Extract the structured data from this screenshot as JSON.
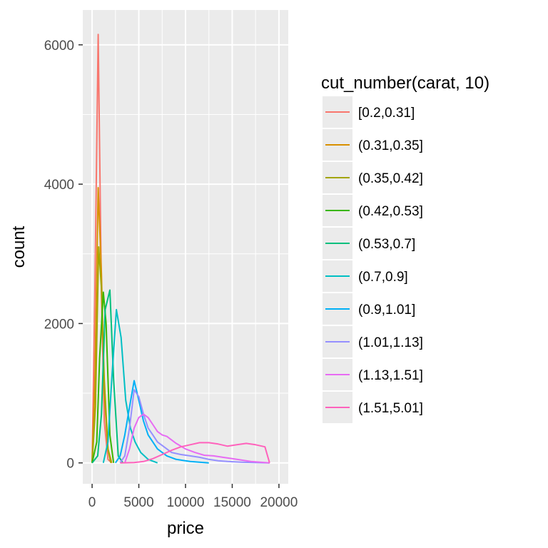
{
  "chart_data": {
    "type": "line",
    "title": "",
    "xlabel": "price",
    "ylabel": "count",
    "xlim": [
      -1000,
      21000
    ],
    "ylim": [
      -300,
      6500
    ],
    "x_ticks": [
      0,
      5000,
      10000,
      15000,
      20000
    ],
    "x_tick_labels": [
      "0",
      "5000",
      "10000",
      "15000",
      "20000"
    ],
    "y_ticks": [
      0,
      2000,
      4000,
      6000
    ],
    "y_tick_labels": [
      "0",
      "2000",
      "4000",
      "6000"
    ],
    "grid": true,
    "background": "#EBEBEB",
    "legend": {
      "title": "cut_number(carat, 10)",
      "position": "right"
    },
    "series": [
      {
        "name": "[0.2,0.31]",
        "color": "#F8766D",
        "x": [
          0,
          300,
          650,
          1000,
          1300,
          1700,
          2100
        ],
        "y": [
          0,
          2500,
          6150,
          2400,
          600,
          50,
          0
        ]
      },
      {
        "name": "(0.31,0.35]",
        "color": "#D89000",
        "x": [
          0,
          300,
          650,
          1000,
          1300,
          1700,
          2100
        ],
        "y": [
          0,
          1200,
          3950,
          2700,
          1000,
          200,
          0
        ]
      },
      {
        "name": "(0.35,0.42]",
        "color": "#A3A500",
        "x": [
          0,
          350,
          700,
          1000,
          1300,
          1700,
          2000
        ],
        "y": [
          0,
          800,
          3100,
          2500,
          1200,
          200,
          0
        ]
      },
      {
        "name": "(0.42,0.53]",
        "color": "#39B600",
        "x": [
          0,
          500,
          800,
          1200,
          1500,
          1900,
          2300
        ],
        "y": [
          0,
          300,
          1500,
          2450,
          2000,
          400,
          0
        ]
      },
      {
        "name": "(0.53,0.7]",
        "color": "#00BF7D",
        "x": [
          0,
          600,
          1000,
          1400,
          1900,
          2300,
          2800,
          3300
        ],
        "y": [
          0,
          100,
          700,
          2200,
          2480,
          1200,
          100,
          0
        ]
      },
      {
        "name": "(0.7,0.9]",
        "color": "#00BFC4",
        "x": [
          1200,
          1700,
          2100,
          2600,
          3100,
          3600,
          4100,
          4600,
          5200,
          6000,
          7000
        ],
        "y": [
          0,
          300,
          1200,
          2200,
          1800,
          900,
          500,
          300,
          150,
          50,
          0
        ]
      },
      {
        "name": "(0.9,1.01]",
        "color": "#00B0F6",
        "x": [
          2500,
          3000,
          3500,
          4000,
          4500,
          5000,
          5500,
          6000,
          7000,
          8000,
          9000,
          10500,
          12500
        ],
        "y": [
          0,
          100,
          400,
          800,
          1180,
          900,
          600,
          400,
          200,
          100,
          50,
          20,
          0
        ]
      },
      {
        "name": "(1.01,1.13]",
        "color": "#9590FF",
        "x": [
          3000,
          3500,
          4000,
          4500,
          5000,
          5500,
          6000,
          6500,
          7000,
          7500,
          8500,
          9500,
          10500,
          11500,
          12500,
          13500,
          14500,
          16000,
          17500,
          19000
        ],
        "y": [
          0,
          100,
          500,
          1050,
          950,
          700,
          500,
          400,
          300,
          250,
          150,
          120,
          100,
          80,
          50,
          30,
          20,
          10,
          5,
          0
        ]
      },
      {
        "name": "(1.13,1.51]",
        "color": "#E76BF3",
        "x": [
          3500,
          4000,
          4500,
          5000,
          5500,
          6000,
          6500,
          7000,
          7500,
          8000,
          9000,
          10000,
          11000,
          12000,
          13000,
          14000,
          15000,
          16000,
          17000,
          18000,
          19000
        ],
        "y": [
          0,
          200,
          500,
          650,
          700,
          650,
          550,
          450,
          400,
          380,
          280,
          200,
          150,
          110,
          100,
          80,
          60,
          40,
          20,
          10,
          0
        ]
      },
      {
        "name": "(1.51,5.01]",
        "color": "#FF62BC",
        "x": [
          3000,
          4500,
          5500,
          6500,
          7500,
          8500,
          9500,
          10500,
          11500,
          12500,
          13500,
          14500,
          15500,
          16500,
          17500,
          18500,
          19000
        ],
        "y": [
          0,
          5,
          20,
          60,
          120,
          180,
          230,
          260,
          290,
          290,
          270,
          240,
          260,
          280,
          260,
          230,
          0
        ]
      }
    ]
  }
}
